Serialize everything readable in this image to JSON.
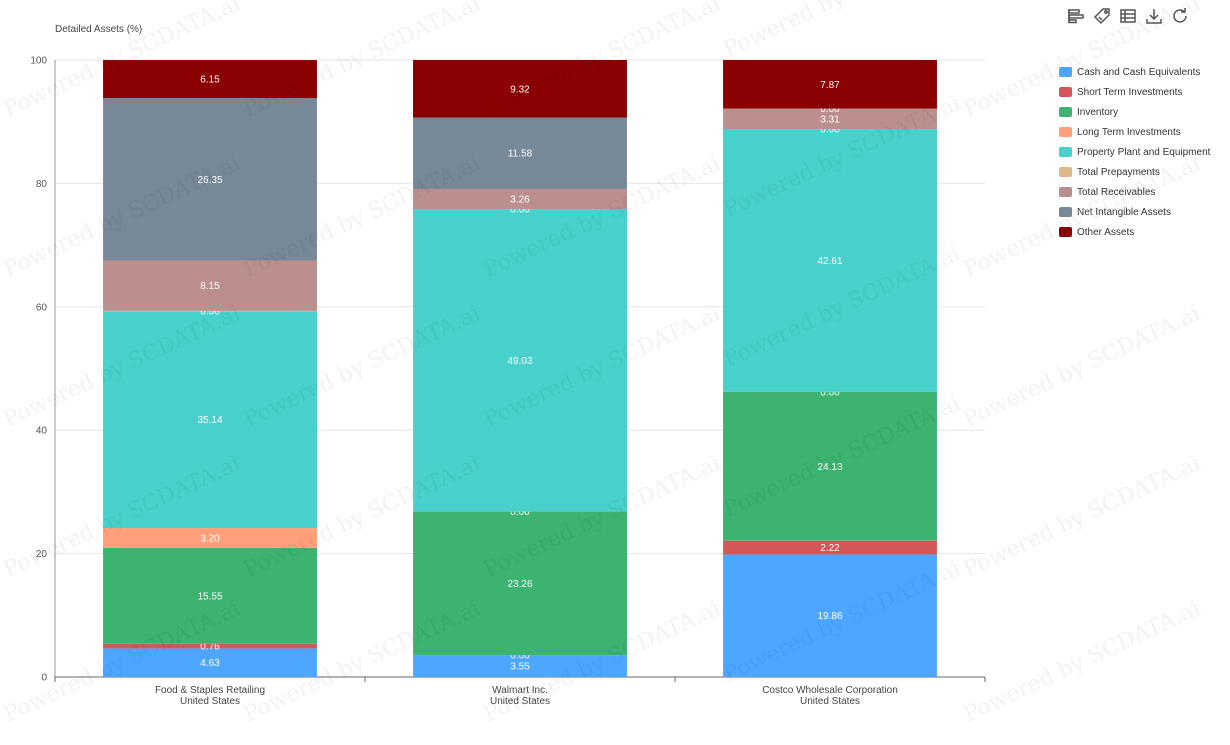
{
  "toolbar": {
    "icons": [
      "bar-sort-icon",
      "tag-icon",
      "data-table-icon",
      "download-icon",
      "refresh-icon"
    ]
  },
  "watermark": "Powered by SCDATA.ai",
  "chart_data": {
    "type": "bar",
    "stacked": true,
    "ylabel": "Detailed Assets (%)",
    "ylim": [
      0,
      100
    ],
    "yticks": [
      0,
      20,
      40,
      60,
      80,
      100
    ],
    "grid": true,
    "legend_position": "right",
    "categories": [
      [
        "Food & Staples Retailing",
        "United States"
      ],
      [
        "Walmart Inc.",
        "United States"
      ],
      [
        "Costco Wholesale Corporation",
        "United States"
      ]
    ],
    "series": [
      {
        "name": "Cash and Cash Equivalents",
        "color": "#4da6ff",
        "values": [
          4.63,
          3.55,
          19.86
        ]
      },
      {
        "name": "Short Term Investments",
        "color": "#d45757",
        "values": [
          0.76,
          0.0,
          2.22
        ]
      },
      {
        "name": "Inventory",
        "color": "#3cb371",
        "values": [
          15.55,
          23.26,
          24.13
        ]
      },
      {
        "name": "Long Term Investments",
        "color": "#ffa07a",
        "values": [
          3.2,
          0.0,
          0.0
        ]
      },
      {
        "name": "Property Plant and Equipment",
        "color": "#48d1cc",
        "values": [
          35.14,
          49.03,
          42.61
        ]
      },
      {
        "name": "Total Prepayments",
        "color": "#deb887",
        "values": [
          0.06,
          0.0,
          0.0
        ]
      },
      {
        "name": "Total Receivables",
        "color": "#bc8f8f",
        "values": [
          8.15,
          3.26,
          3.31
        ]
      },
      {
        "name": "Net Intangible Assets",
        "color": "#778899",
        "values": [
          26.35,
          11.58,
          0.0
        ]
      },
      {
        "name": "Other Assets",
        "color": "#8b0000",
        "values": [
          6.15,
          9.32,
          7.87
        ]
      }
    ]
  }
}
